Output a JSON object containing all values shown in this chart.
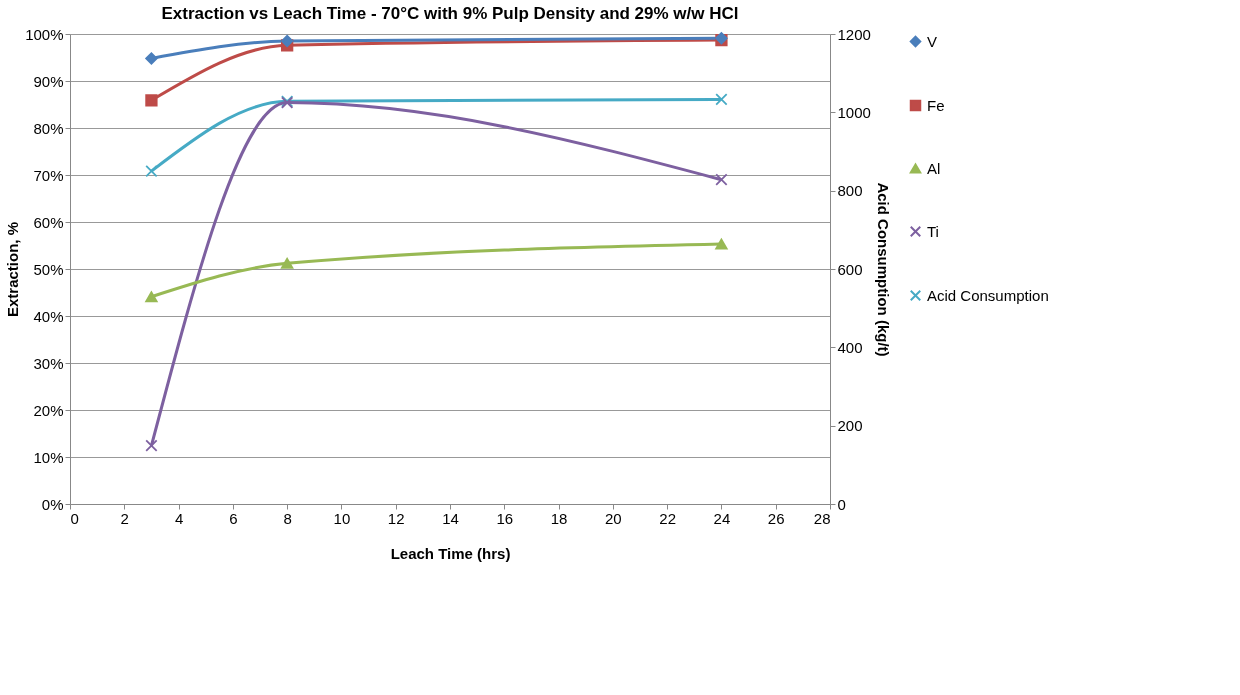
{
  "chart_data": {
    "type": "line",
    "title": "Extraction vs Leach Time - 70°C with 9% Pulp Density and 29% w/w HCl",
    "xlabel": "Leach Time (hrs)",
    "ylabel": "Extraction, %",
    "y2label": "Acid Consumption (kg/t)",
    "x": [
      3,
      8,
      24
    ],
    "xlim": [
      0,
      28
    ],
    "xticks": [
      0,
      2,
      4,
      6,
      8,
      10,
      12,
      14,
      16,
      18,
      20,
      22,
      24,
      26,
      28
    ],
    "ylim": [
      0,
      100
    ],
    "yticks": [
      {
        "value": 0,
        "label": "0%"
      },
      {
        "value": 10,
        "label": "10%"
      },
      {
        "value": 20,
        "label": "20%"
      },
      {
        "value": 30,
        "label": "30%"
      },
      {
        "value": 40,
        "label": "40%"
      },
      {
        "value": 50,
        "label": "50%"
      },
      {
        "value": 60,
        "label": "60%"
      },
      {
        "value": 70,
        "label": "70%"
      },
      {
        "value": 80,
        "label": "80%"
      },
      {
        "value": 90,
        "label": "90%"
      },
      {
        "value": 100,
        "label": "100%"
      }
    ],
    "y2lim": [
      0,
      1200
    ],
    "y2ticks": [
      0,
      200,
      400,
      600,
      800,
      {
        "value": 1000,
        "label": "1000"
      },
      {
        "value": 1200,
        "label": "1200"
      }
    ],
    "series": [
      {
        "name": "V",
        "color": "#4a7ebb",
        "marker": "diamond",
        "values": [
          94.8,
          98.5,
          99.1
        ]
      },
      {
        "name": "Fe",
        "color": "#be4b48",
        "marker": "square",
        "values": [
          85.9,
          97.6,
          98.7
        ]
      },
      {
        "name": "Al",
        "color": "#98b954",
        "marker": "triangle",
        "values": [
          44.1,
          51.2,
          55.3
        ]
      },
      {
        "name": "Ti",
        "color": "#7d60a0",
        "marker": "cross",
        "values": [
          12.4,
          85.4,
          69.0
        ]
      },
      {
        "name": "Acid Consumption",
        "color": "#46aac5",
        "marker": "cross",
        "axis": "y2",
        "values": [
          850,
          1028,
          1033
        ]
      }
    ],
    "grid": "y",
    "legend": "right",
    "line_style": "solid"
  }
}
